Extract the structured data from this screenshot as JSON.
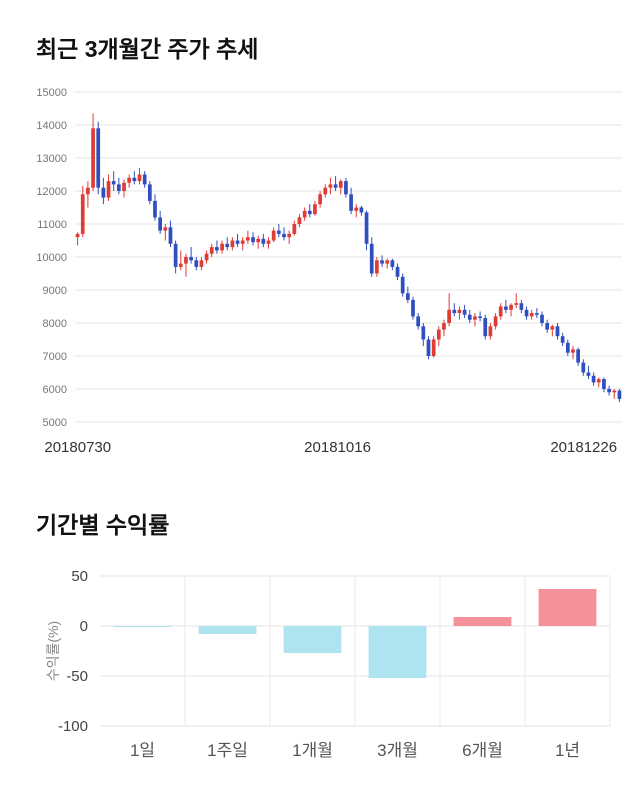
{
  "chart_data": [
    {
      "type": "candlestick",
      "title": "최근 3개월간 주가 추세",
      "x_tick_labels": [
        "20180730",
        "20181016",
        "20181226"
      ],
      "ylabel": "",
      "ylim": [
        5000,
        15000
      ],
      "y_ticks": [
        5000,
        6000,
        7000,
        8000,
        9000,
        10000,
        11000,
        12000,
        13000,
        14000,
        15000
      ],
      "grid": "horizontal",
      "up_color": "#e03b35",
      "down_color": "#2f4fc1",
      "candles": [
        [
          10600,
          10750,
          10350,
          10700
        ],
        [
          10700,
          12150,
          10600,
          11900
        ],
        [
          11900,
          12300,
          11500,
          12100
        ],
        [
          12100,
          14350,
          12000,
          13900
        ],
        [
          13900,
          14100,
          11900,
          12100
        ],
        [
          12100,
          12400,
          11600,
          11800
        ],
        [
          11800,
          12500,
          11700,
          12300
        ],
        [
          12300,
          12600,
          12000,
          12200
        ],
        [
          12200,
          12400,
          11900,
          12000
        ],
        [
          12000,
          12350,
          11800,
          12250
        ],
        [
          12250,
          12500,
          12100,
          12400
        ],
        [
          12400,
          12600,
          12200,
          12300
        ],
        [
          12300,
          12700,
          12200,
          12500
        ],
        [
          12500,
          12600,
          12100,
          12200
        ],
        [
          12200,
          12300,
          11600,
          11700
        ],
        [
          11700,
          11900,
          11100,
          11200
        ],
        [
          11200,
          11400,
          10700,
          10800
        ],
        [
          10800,
          11000,
          10500,
          10900
        ],
        [
          10900,
          11100,
          10300,
          10400
        ],
        [
          10400,
          10500,
          9500,
          9700
        ],
        [
          9700,
          10200,
          9600,
          9800
        ],
        [
          9800,
          10100,
          9400,
          10000
        ],
        [
          10000,
          10300,
          9800,
          9900
        ],
        [
          9900,
          10000,
          9600,
          9700
        ],
        [
          9700,
          10000,
          9600,
          9900
        ],
        [
          9900,
          10200,
          9800,
          10100
        ],
        [
          10100,
          10400,
          10000,
          10300
        ],
        [
          10300,
          10500,
          10100,
          10200
        ],
        [
          10200,
          10500,
          10100,
          10400
        ],
        [
          10400,
          10600,
          10200,
          10300
        ],
        [
          10300,
          10600,
          10200,
          10500
        ],
        [
          10500,
          10700,
          10300,
          10400
        ],
        [
          10400,
          10600,
          10200,
          10500
        ],
        [
          10500,
          10800,
          10400,
          10600
        ],
        [
          10600,
          10750,
          10350,
          10450
        ],
        [
          10450,
          10650,
          10250,
          10550
        ],
        [
          10550,
          10700,
          10300,
          10400
        ],
        [
          10400,
          10600,
          10250,
          10500
        ],
        [
          10500,
          10900,
          10450,
          10800
        ],
        [
          10800,
          11000,
          10600,
          10700
        ],
        [
          10700,
          10900,
          10500,
          10600
        ],
        [
          10600,
          10800,
          10400,
          10700
        ],
        [
          10700,
          11100,
          10650,
          11000
        ],
        [
          11000,
          11300,
          10900,
          11200
        ],
        [
          11200,
          11500,
          11100,
          11400
        ],
        [
          11400,
          11600,
          11200,
          11300
        ],
        [
          11300,
          11700,
          11250,
          11600
        ],
        [
          11600,
          12000,
          11500,
          11900
        ],
        [
          11900,
          12200,
          11800,
          12100
        ],
        [
          12100,
          12400,
          11900,
          12200
        ],
        [
          12200,
          12450,
          12000,
          12100
        ],
        [
          12100,
          12350,
          11900,
          12300
        ],
        [
          12300,
          12400,
          11800,
          11900
        ],
        [
          11900,
          12100,
          11300,
          11400
        ],
        [
          11400,
          11600,
          11200,
          11500
        ],
        [
          11500,
          11550,
          11250,
          11350
        ],
        [
          11350,
          11400,
          10200,
          10400
        ],
        [
          10400,
          10600,
          9400,
          9500
        ],
        [
          9500,
          10000,
          9400,
          9900
        ],
        [
          9900,
          10050,
          9700,
          9800
        ],
        [
          9800,
          9950,
          9650,
          9900
        ],
        [
          9900,
          9950,
          9600,
          9700
        ],
        [
          9700,
          9800,
          9300,
          9400
        ],
        [
          9400,
          9500,
          8800,
          8900
        ],
        [
          8900,
          9100,
          8600,
          8700
        ],
        [
          8700,
          8800,
          8100,
          8200
        ],
        [
          8200,
          8300,
          7800,
          7900
        ],
        [
          7900,
          8000,
          7300,
          7500
        ],
        [
          7500,
          7600,
          6900,
          7000
        ],
        [
          7000,
          7600,
          6950,
          7500
        ],
        [
          7500,
          7900,
          7300,
          7800
        ],
        [
          7800,
          8100,
          7600,
          8000
        ],
        [
          8000,
          8900,
          7900,
          8400
        ],
        [
          8400,
          8600,
          8200,
          8300
        ],
        [
          8300,
          8500,
          8100,
          8400
        ],
        [
          8400,
          8550,
          8150,
          8250
        ],
        [
          8250,
          8400,
          8000,
          8100
        ],
        [
          8100,
          8300,
          7900,
          8200
        ],
        [
          8200,
          8350,
          8050,
          8150
        ],
        [
          8150,
          8250,
          7500,
          7600
        ],
        [
          7600,
          8000,
          7500,
          7900
        ],
        [
          7900,
          8300,
          7800,
          8200
        ],
        [
          8200,
          8600,
          8100,
          8500
        ],
        [
          8500,
          8700,
          8300,
          8400
        ],
        [
          8400,
          8600,
          8200,
          8550
        ],
        [
          8550,
          8900,
          8450,
          8600
        ],
        [
          8600,
          8700,
          8300,
          8400
        ],
        [
          8400,
          8500,
          8100,
          8200
        ],
        [
          8200,
          8400,
          8100,
          8300
        ],
        [
          8300,
          8450,
          8150,
          8250
        ],
        [
          8250,
          8350,
          7900,
          8000
        ],
        [
          8000,
          8100,
          7700,
          7800
        ],
        [
          7800,
          7950,
          7600,
          7900
        ],
        [
          7900,
          8000,
          7500,
          7600
        ],
        [
          7600,
          7700,
          7300,
          7400
        ],
        [
          7400,
          7500,
          7000,
          7100
        ],
        [
          7100,
          7300,
          6900,
          7200
        ],
        [
          7200,
          7250,
          6700,
          6800
        ],
        [
          6800,
          6900,
          6400,
          6500
        ],
        [
          6500,
          6700,
          6300,
          6400
        ],
        [
          6400,
          6500,
          6100,
          6200
        ],
        [
          6200,
          6350,
          6050,
          6300
        ],
        [
          6300,
          6350,
          5900,
          6000
        ],
        [
          6000,
          6100,
          5800,
          5900
        ],
        [
          5900,
          6000,
          5700,
          5950
        ],
        [
          5950,
          6000,
          5600,
          5700
        ]
      ]
    },
    {
      "type": "bar",
      "title": "기간별 수익률",
      "categories": [
        "1일",
        "1주일",
        "1개월",
        "3개월",
        "6개월",
        "1년"
      ],
      "values": [
        -1,
        -8,
        -27,
        -52,
        9,
        37
      ],
      "ylabel": "수익률(%)",
      "ylim": [
        -100,
        50
      ],
      "y_ticks": [
        50,
        0,
        -50,
        -100
      ],
      "grid": "both",
      "negative_color": "#aee3f0",
      "positive_color": "#f5919a"
    }
  ]
}
